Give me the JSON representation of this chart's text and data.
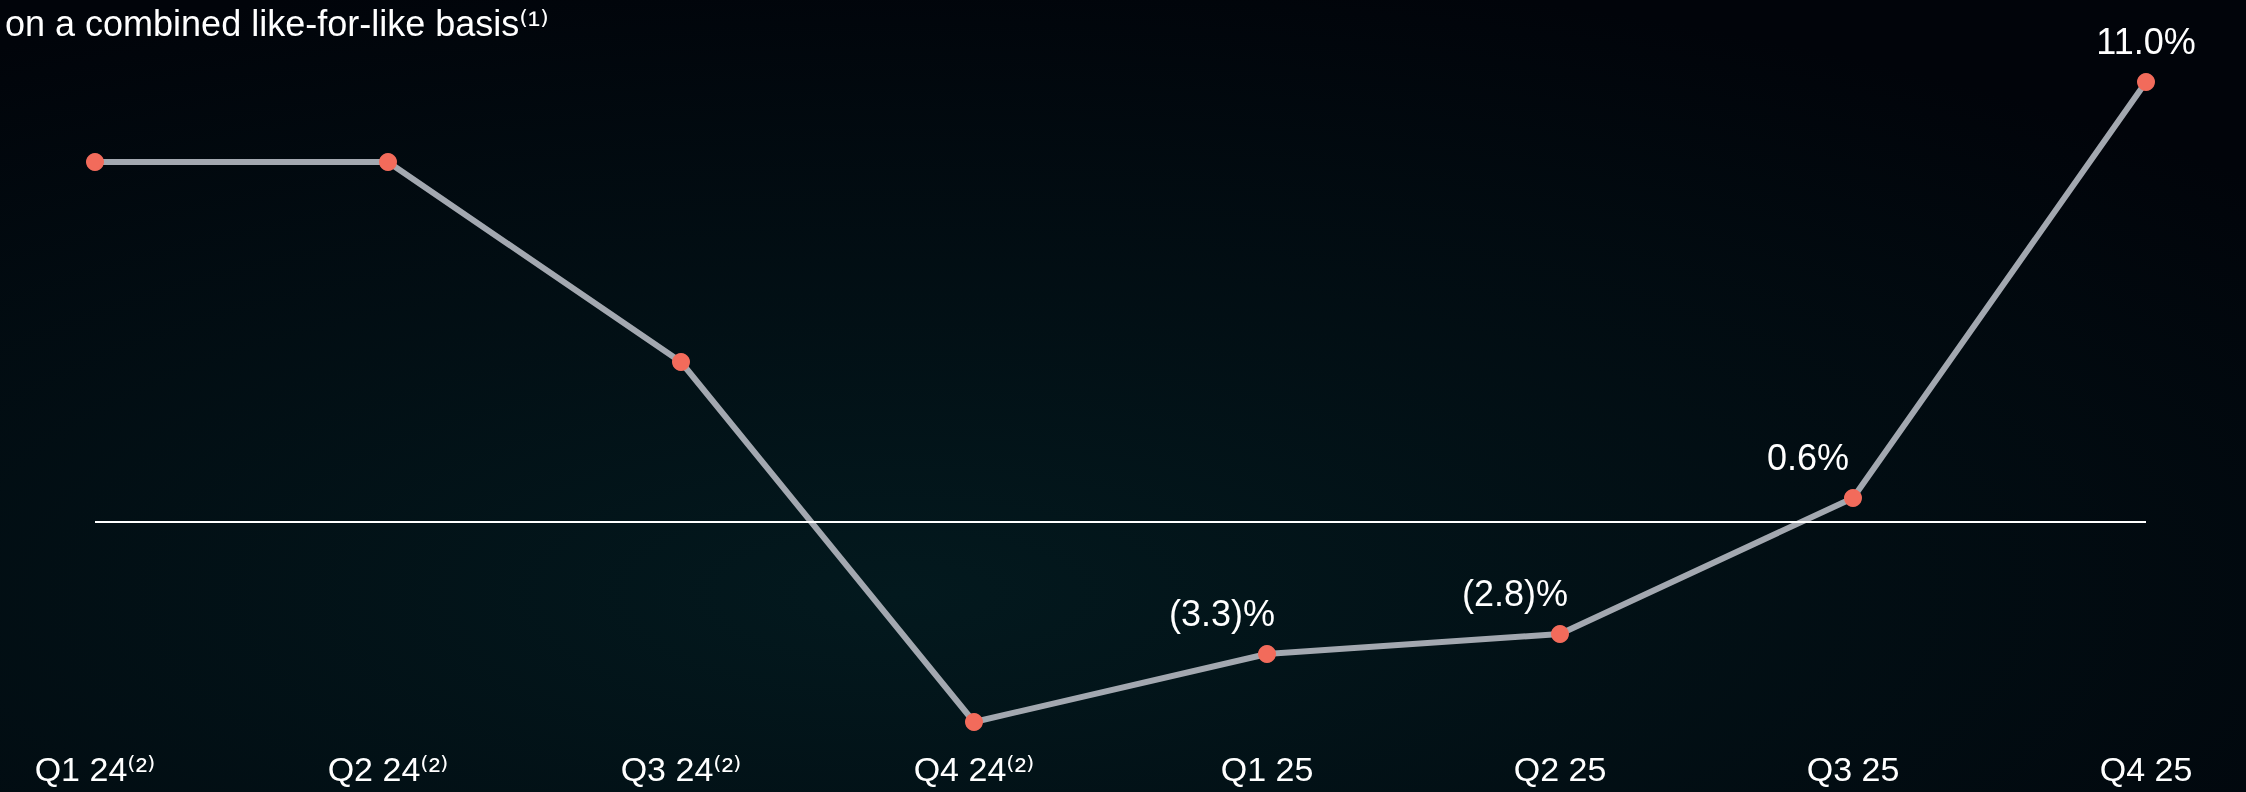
{
  "chart_data": {
    "type": "line",
    "title": "on a combined like-for-like basis⁽¹⁾",
    "categories": [
      "Q1 24⁽²⁾",
      "Q2 24⁽²⁾",
      "Q3 24⁽²⁾",
      "Q4 24⁽²⁾",
      "Q1 25",
      "Q2 25",
      "Q3 25",
      "Q4 25"
    ],
    "series": [
      {
        "color": "#a3a8b0",
        "colors": [
          "#f26b5b",
          "#f26b5b",
          "#f26b5b",
          "#f26b5b",
          "#f26b5b",
          "#f26b5b",
          "#f26b5b",
          "#f26b5b"
        ],
        "values": [
          9.0,
          9.0,
          4.0,
          -5.0,
          -3.3,
          -2.8,
          0.6,
          11.0
        ],
        "value_labels": [
          null,
          null,
          null,
          null,
          "(3.3)%",
          "(2.8)%",
          "0.6%",
          "11.0%"
        ]
      }
    ],
    "marker": "circle",
    "tick_labels": "x",
    "grid": false,
    "ref_lines": [
      {
        "axis": "y",
        "value": 0,
        "color": "#ffffff"
      }
    ]
  }
}
